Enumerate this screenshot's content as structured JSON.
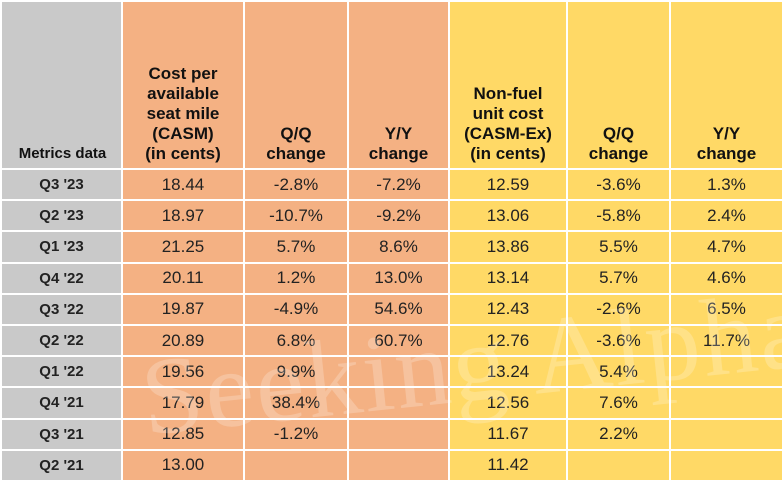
{
  "columns": [
    {
      "lines": [
        "Metrics data"
      ]
    },
    {
      "lines": [
        "Cost per",
        "available",
        "seat mile",
        "(CASM)",
        "(in cents)"
      ]
    },
    {
      "lines": [
        "Q/Q",
        "change"
      ]
    },
    {
      "lines": [
        "Y/Y",
        "change"
      ]
    },
    {
      "lines": [
        "Non-fuel",
        "unit cost",
        "(CASM-Ex)",
        "(in cents)"
      ]
    },
    {
      "lines": [
        "Q/Q",
        "change"
      ]
    },
    {
      "lines": [
        "Y/Y",
        "change"
      ]
    }
  ],
  "rows": [
    [
      "Q3 '23",
      "18.44",
      "-2.8%",
      "-7.2%",
      "12.59",
      "-3.6%",
      "1.3%"
    ],
    [
      "Q2 '23",
      "18.97",
      "-10.7%",
      "-9.2%",
      "13.06",
      "-5.8%",
      "2.4%"
    ],
    [
      "Q1 '23",
      "21.25",
      "5.7%",
      "8.6%",
      "13.86",
      "5.5%",
      "4.7%"
    ],
    [
      "Q4 '22",
      "20.11",
      "1.2%",
      "13.0%",
      "13.14",
      "5.7%",
      "4.6%"
    ],
    [
      "Q3 '22",
      "19.87",
      "-4.9%",
      "54.6%",
      "12.43",
      "-2.6%",
      "6.5%"
    ],
    [
      "Q2 '22",
      "20.89",
      "6.8%",
      "60.7%",
      "12.76",
      "-3.6%",
      "11.7%"
    ],
    [
      "Q1 '22",
      "19.56",
      "9.9%",
      "",
      "13.24",
      "5.4%",
      ""
    ],
    [
      "Q4 '21",
      "17.79",
      "38.4%",
      "",
      "12.56",
      "7.6%",
      ""
    ],
    [
      "Q3 '21",
      "12.85",
      "-1.2%",
      "",
      "11.67",
      "2.2%",
      ""
    ],
    [
      "Q2 '21",
      "13.00",
      "",
      "",
      "11.42",
      "",
      ""
    ]
  ],
  "watermark": "Seeking Alpha",
  "colors": {
    "label_column": "#c9c9c9",
    "casm_group": "#f4b183",
    "casm_ex_group": "#ffd966"
  }
}
